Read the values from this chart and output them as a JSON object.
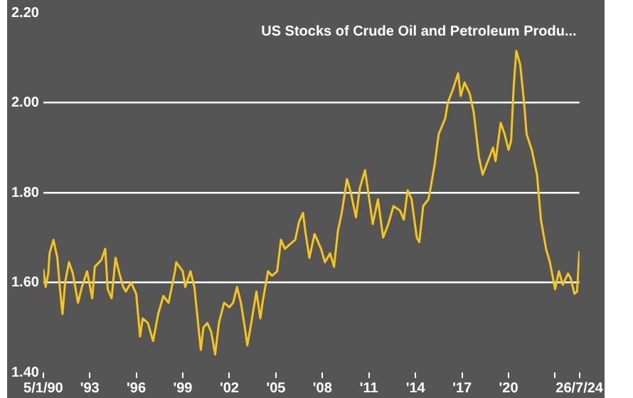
{
  "chart_data": {
    "type": "line",
    "title": "US Stocks of Crude Oil and Petroleum Produ...",
    "x": [
      "1990-01-05",
      "1990-03",
      "1990-05",
      "1990-06",
      "1990-09",
      "1990-12",
      "1991-02",
      "1991-04",
      "1991-06",
      "1991-09",
      "1991-12",
      "1992-04",
      "1992-07",
      "1992-11",
      "1993-03",
      "1993-05",
      "1993-10",
      "1994-01",
      "1994-03",
      "1994-06",
      "1994-09",
      "1994-12",
      "1995-03",
      "1995-05",
      "1995-09",
      "1996-01",
      "1996-04",
      "1996-06",
      "1996-10",
      "1997-02",
      "1997-06",
      "1997-10",
      "1998-02",
      "1998-07",
      "1998-08",
      "1999-01",
      "1999-03",
      "1999-07",
      "1999-10",
      "2000-03",
      "2000-05",
      "2000-08",
      "2000-11",
      "2001-02",
      "2001-05",
      "2001-09",
      "2002-01",
      "2002-04",
      "2002-07",
      "2002-10",
      "2003-01",
      "2003-03",
      "2003-06",
      "2003-10",
      "2004-01",
      "2004-03",
      "2004-07",
      "2004-10",
      "2005-02",
      "2005-05",
      "2005-08",
      "2005-12",
      "2006-04",
      "2006-07",
      "2006-10",
      "2006-12",
      "2007-03",
      "2007-07",
      "2007-12",
      "2008-03",
      "2008-07",
      "2008-10",
      "2009-01",
      "2009-04",
      "2009-08",
      "2009-11",
      "2010-03",
      "2010-06",
      "2010-10",
      "2011-02",
      "2011-04",
      "2011-08",
      "2011-12",
      "2012-04",
      "2012-08",
      "2013-01",
      "2013-04",
      "2013-07",
      "2013-10",
      "2014-02",
      "2014-04",
      "2014-07",
      "2014-11",
      "2015-01",
      "2015-04",
      "2015-07",
      "2015-12",
      "2016-02",
      "2016-06",
      "2016-10",
      "2016-12",
      "2017-03",
      "2017-07",
      "2017-10",
      "2018-02",
      "2018-05",
      "2018-09",
      "2019-01",
      "2019-03",
      "2019-07",
      "2019-10",
      "2020-01",
      "2020-03",
      "2020-05",
      "2020-07",
      "2020-10",
      "2021-01",
      "2021-03",
      "2021-07",
      "2021-11",
      "2022-02",
      "2022-06",
      "2022-09",
      "2023-01",
      "2023-04",
      "2023-07",
      "2023-11",
      "2024-01",
      "2024-04",
      "2024-06",
      "2024-07-26"
    ],
    "series": [
      {
        "color": "#f5c518",
        "values": [
          1.63,
          1.59,
          1.62,
          1.665,
          1.695,
          1.655,
          1.585,
          1.53,
          1.6,
          1.645,
          1.62,
          1.555,
          1.59,
          1.625,
          1.565,
          1.635,
          1.65,
          1.675,
          1.585,
          1.565,
          1.655,
          1.62,
          1.59,
          1.58,
          1.6,
          1.575,
          1.48,
          1.52,
          1.51,
          1.47,
          1.53,
          1.57,
          1.555,
          1.625,
          1.645,
          1.625,
          1.59,
          1.625,
          1.59,
          1.45,
          1.5,
          1.51,
          1.49,
          1.44,
          1.51,
          1.555,
          1.545,
          1.555,
          1.59,
          1.555,
          1.5,
          1.46,
          1.51,
          1.58,
          1.52,
          1.56,
          1.625,
          1.615,
          1.625,
          1.695,
          1.675,
          1.685,
          1.695,
          1.735,
          1.755,
          1.71,
          1.655,
          1.708,
          1.675,
          1.645,
          1.665,
          1.635,
          1.715,
          1.755,
          1.83,
          1.8,
          1.745,
          1.81,
          1.85,
          1.77,
          1.73,
          1.785,
          1.7,
          1.73,
          1.77,
          1.76,
          1.74,
          1.805,
          1.785,
          1.7,
          1.69,
          1.77,
          1.785,
          1.815,
          1.865,
          1.93,
          1.965,
          2.0,
          2.03,
          2.065,
          2.015,
          2.045,
          2.02,
          1.98,
          1.88,
          1.84,
          1.87,
          1.9,
          1.87,
          1.955,
          1.93,
          1.895,
          1.915,
          2.035,
          2.115,
          2.085,
          2.0,
          1.93,
          1.895,
          1.84,
          1.74,
          1.675,
          1.645,
          1.585,
          1.625,
          1.595,
          1.62,
          1.61,
          1.575,
          1.58,
          1.67
        ]
      }
    ],
    "xlim": [
      "1990-01-05",
      "2024-07-26"
    ],
    "xticks": [
      {
        "value": "1990-01-05",
        "label": "5/1/90"
      },
      {
        "value": "1993-01-01",
        "label": "'93"
      },
      {
        "value": "1996-01-01",
        "label": "'96"
      },
      {
        "value": "1999-01-01",
        "label": "'99"
      },
      {
        "value": "2002-01-01",
        "label": "'02"
      },
      {
        "value": "2005-01-01",
        "label": "'05"
      },
      {
        "value": "2008-01-01",
        "label": "'08"
      },
      {
        "value": "2011-01-01",
        "label": "'11"
      },
      {
        "value": "2014-01-01",
        "label": "'14"
      },
      {
        "value": "2017-01-01",
        "label": "'17"
      },
      {
        "value": "2020-01-01",
        "label": "'20"
      },
      {
        "value": "2023-01-01",
        "label": null
      },
      {
        "value": "2024-07-26",
        "label": "26/7/24"
      }
    ],
    "ylim": [
      1.4,
      2.2
    ],
    "yticks": [
      {
        "value": 1.4,
        "label": "1.40"
      },
      {
        "value": 1.6,
        "label": "1.60"
      },
      {
        "value": 1.8,
        "label": "1.80"
      },
      {
        "value": 2.0,
        "label": "2.00"
      },
      {
        "value": 2.2,
        "label": "2.20"
      }
    ],
    "grid": "y",
    "legend": false,
    "marker": "none",
    "line_style": "solid"
  }
}
